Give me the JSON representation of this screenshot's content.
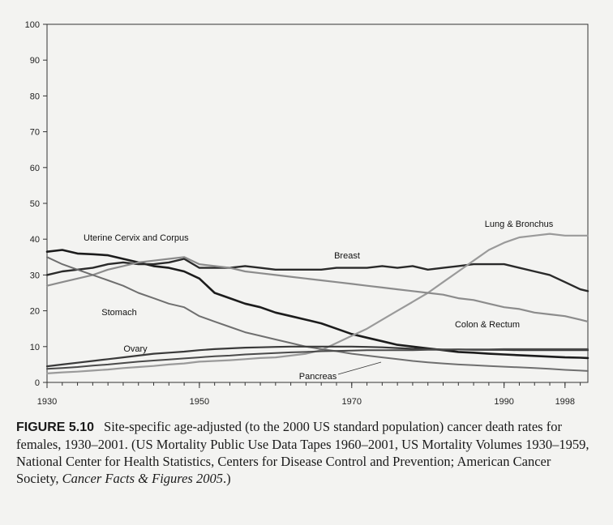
{
  "chart_data": {
    "type": "line",
    "title": "",
    "xlabel": "",
    "ylabel": "",
    "xlim": [
      1930,
      2001
    ],
    "ylim": [
      0,
      100
    ],
    "x_ticks": [
      {
        "value": 1930,
        "label": "1930"
      },
      {
        "value": 1950,
        "label": "1950"
      },
      {
        "value": 1970,
        "label": "1970"
      },
      {
        "value": 1990,
        "label": "1990"
      },
      {
        "value": 1998,
        "label": "1998"
      }
    ],
    "y_ticks": [
      {
        "value": 0,
        "label": "0"
      },
      {
        "value": 10,
        "label": "10"
      },
      {
        "value": 20,
        "label": "20"
      },
      {
        "value": 30,
        "label": "30"
      },
      {
        "value": 40,
        "label": "40"
      },
      {
        "value": 50,
        "label": "50"
      },
      {
        "value": 60,
        "label": "60"
      },
      {
        "value": 70,
        "label": "70"
      },
      {
        "value": 80,
        "label": "80"
      },
      {
        "value": 90,
        "label": "90"
      },
      {
        "value": 100,
        "label": "100"
      }
    ],
    "grid": false,
    "legend": "none (direct labels on lines)",
    "series": [
      {
        "name": "Uterine Cervix and Corpus",
        "color": "#1c1c1c",
        "x": [
          1930,
          1932,
          1934,
          1936,
          1938,
          1940,
          1942,
          1944,
          1946,
          1948,
          1950,
          1952,
          1954,
          1956,
          1958,
          1960,
          1962,
          1964,
          1966,
          1968,
          1970,
          1972,
          1974,
          1976,
          1978,
          1980,
          1982,
          1984,
          1986,
          1988,
          1990,
          1992,
          1994,
          1996,
          1998,
          2000,
          2001
        ],
        "values": [
          36.5,
          37,
          36,
          35.8,
          35.5,
          34.5,
          33.5,
          32.5,
          32,
          31,
          29,
          25,
          23.5,
          22,
          21,
          19.5,
          18.5,
          17.5,
          16.5,
          15,
          13.5,
          12.5,
          11.5,
          10.5,
          10,
          9.5,
          9,
          8.5,
          8.3,
          8,
          7.8,
          7.6,
          7.4,
          7.2,
          7,
          6.9,
          6.8
        ]
      },
      {
        "name": "Breast",
        "color": "#2a2a2a",
        "x": [
          1930,
          1932,
          1934,
          1936,
          1938,
          1940,
          1942,
          1944,
          1946,
          1948,
          1950,
          1952,
          1954,
          1956,
          1958,
          1960,
          1962,
          1964,
          1966,
          1968,
          1970,
          1972,
          1974,
          1976,
          1978,
          1980,
          1982,
          1984,
          1986,
          1988,
          1990,
          1992,
          1994,
          1996,
          1998,
          2000,
          2001
        ],
        "values": [
          30,
          31,
          31.5,
          32,
          33,
          33.5,
          33,
          33,
          33.5,
          34.5,
          32,
          32,
          32,
          32.5,
          32,
          31.5,
          31.5,
          31.5,
          31.5,
          32,
          32,
          32,
          32.5,
          32,
          32.5,
          31.5,
          32,
          32.5,
          33,
          33,
          33,
          32,
          31,
          30,
          28,
          26,
          25.5
        ]
      },
      {
        "name": "Lung & Bronchus",
        "color": "#9a9a9a",
        "x": [
          1930,
          1932,
          1934,
          1936,
          1938,
          1940,
          1942,
          1944,
          1946,
          1948,
          1950,
          1952,
          1954,
          1956,
          1958,
          1960,
          1962,
          1964,
          1966,
          1968,
          1970,
          1972,
          1974,
          1976,
          1978,
          1980,
          1982,
          1984,
          1986,
          1988,
          1990,
          1992,
          1994,
          1996,
          1998,
          2000,
          2001
        ],
        "values": [
          2.5,
          2.8,
          3,
          3.3,
          3.6,
          4,
          4.3,
          4.6,
          5,
          5.3,
          5.8,
          6,
          6.2,
          6.5,
          6.8,
          7,
          7.5,
          8,
          9,
          11,
          13,
          15,
          17.5,
          20,
          22.5,
          25,
          28,
          31,
          34,
          37,
          39,
          40.5,
          41,
          41.5,
          41,
          41,
          41
        ]
      },
      {
        "name": "Colon & Rectum",
        "color": "#8c8c8c",
        "x": [
          1930,
          1932,
          1934,
          1936,
          1938,
          1940,
          1942,
          1944,
          1946,
          1948,
          1950,
          1952,
          1954,
          1956,
          1958,
          1960,
          1962,
          1964,
          1966,
          1968,
          1970,
          1972,
          1974,
          1976,
          1978,
          1980,
          1982,
          1984,
          1986,
          1988,
          1990,
          1992,
          1994,
          1996,
          1998,
          2000,
          2001
        ],
        "values": [
          27,
          28,
          29,
          30,
          31.5,
          32.5,
          33.5,
          34,
          34.5,
          35,
          33,
          32.5,
          32,
          31,
          30.5,
          30,
          29.5,
          29,
          28.5,
          28,
          27.5,
          27,
          26.5,
          26,
          25.5,
          25,
          24.5,
          23.5,
          23,
          22,
          21,
          20.5,
          19.5,
          19,
          18.5,
          17.5,
          17
        ]
      },
      {
        "name": "Stomach",
        "color": "#6f6f6f",
        "x": [
          1930,
          1932,
          1934,
          1936,
          1938,
          1940,
          1942,
          1944,
          1946,
          1948,
          1950,
          1952,
          1954,
          1956,
          1958,
          1960,
          1962,
          1964,
          1966,
          1968,
          1970,
          1972,
          1974,
          1976,
          1978,
          1980,
          1982,
          1984,
          1986,
          1988,
          1990,
          1992,
          1994,
          1996,
          1998,
          2000,
          2001
        ],
        "values": [
          35,
          33,
          31.5,
          30,
          28.5,
          27,
          25,
          23.5,
          22,
          21,
          18.5,
          17,
          15.5,
          14,
          13,
          12,
          11,
          10,
          9.3,
          8.7,
          8,
          7.5,
          7,
          6.5,
          6,
          5.6,
          5.3,
          5,
          4.8,
          4.6,
          4.4,
          4.2,
          4,
          3.8,
          3.5,
          3.3,
          3.2
        ]
      },
      {
        "name": "Ovary",
        "color": "#3a3a3a",
        "x": [
          1930,
          1932,
          1934,
          1936,
          1938,
          1940,
          1942,
          1944,
          1946,
          1948,
          1950,
          1952,
          1954,
          1956,
          1958,
          1960,
          1962,
          1964,
          1966,
          1968,
          1970,
          1972,
          1974,
          1976,
          1978,
          1980,
          1982,
          1984,
          1986,
          1988,
          1990,
          1992,
          1994,
          1996,
          1998,
          2000,
          2001
        ],
        "values": [
          4.5,
          5,
          5.5,
          6,
          6.5,
          7,
          7.5,
          8,
          8.3,
          8.6,
          9,
          9.3,
          9.5,
          9.7,
          9.8,
          9.9,
          10,
          10,
          10,
          10,
          10,
          9.9,
          9.8,
          9.6,
          9.4,
          9.3,
          9.2,
          9.2,
          9.1,
          9.1,
          9.1,
          9,
          9,
          9,
          9,
          9,
          9
        ]
      },
      {
        "name": "Pancreas",
        "color": "#4a4a4a",
        "x": [
          1930,
          1932,
          1934,
          1936,
          1938,
          1940,
          1942,
          1944,
          1946,
          1948,
          1950,
          1952,
          1954,
          1956,
          1958,
          1960,
          1962,
          1964,
          1966,
          1968,
          1970,
          1972,
          1974,
          1976,
          1978,
          1980,
          1982,
          1984,
          1986,
          1988,
          1990,
          1992,
          1994,
          1996,
          1998,
          2000,
          2001
        ],
        "values": [
          3.8,
          4,
          4.3,
          4.7,
          5,
          5.4,
          5.8,
          6.1,
          6.4,
          6.7,
          7,
          7.3,
          7.5,
          7.8,
          8,
          8.2,
          8.4,
          8.5,
          8.7,
          8.8,
          8.9,
          9,
          9,
          9,
          9,
          9.1,
          9.1,
          9.2,
          9.2,
          9.2,
          9.3,
          9.3,
          9.3,
          9.3,
          9.3,
          9.3,
          9.3
        ]
      }
    ]
  },
  "caption": {
    "figure_label": "FIGURE 5.10",
    "text": "Site-specific age-adjusted (to the 2000 US standard population) cancer death rates for females, 1930–2001. (US Mortality Public Use Data Tapes 1960–2001, US Mortality Volumes 1930–1959, National Center for Health Statistics, Centers for Disease Control and Prevention; American Cancer Society, ",
    "source_title": "Cancer Facts & Figures 2005",
    "end": ".)"
  }
}
